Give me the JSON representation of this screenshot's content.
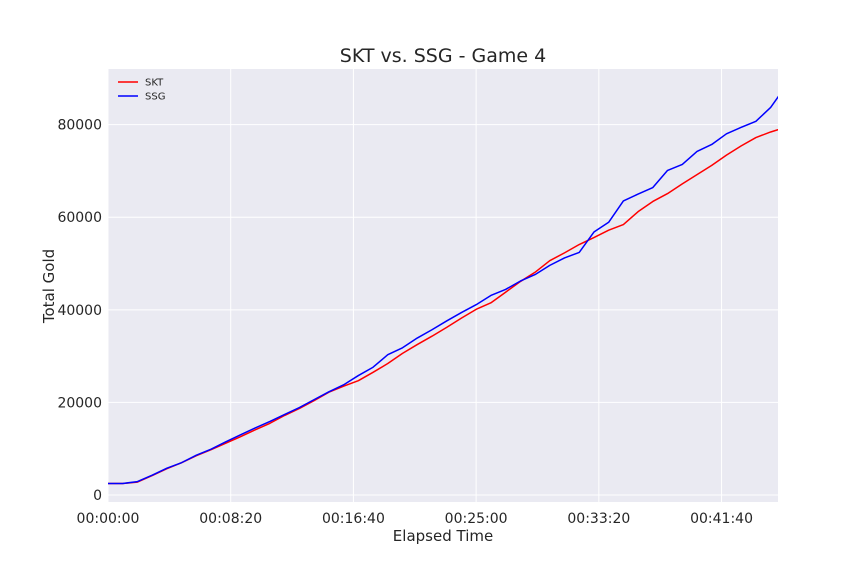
{
  "chart_data": {
    "type": "line",
    "title": "SKT vs. SSG - Game 4",
    "xlabel": "Elapsed Time",
    "ylabel": "Total Gold",
    "x_unit": "seconds",
    "xlim": [
      0,
      2730
    ],
    "ylim": [
      -1500,
      92000
    ],
    "x_ticks": [
      {
        "value": 0,
        "label": "00:00:00"
      },
      {
        "value": 500,
        "label": "00:08:20"
      },
      {
        "value": 1000,
        "label": "00:16:40"
      },
      {
        "value": 1500,
        "label": "00:25:00"
      },
      {
        "value": 2000,
        "label": "00:33:20"
      },
      {
        "value": 2500,
        "label": "00:41:40"
      }
    ],
    "y_ticks": [
      {
        "value": 0,
        "label": "0"
      },
      {
        "value": 20000,
        "label": "20000"
      },
      {
        "value": 40000,
        "label": "40000"
      },
      {
        "value": 60000,
        "label": "60000"
      },
      {
        "value": 80000,
        "label": "80000"
      }
    ],
    "grid": true,
    "legend_position": "top-left",
    "x": [
      0,
      60,
      120,
      180,
      240,
      300,
      360,
      420,
      480,
      540,
      600,
      660,
      720,
      780,
      840,
      900,
      960,
      1020,
      1080,
      1140,
      1200,
      1260,
      1320,
      1380,
      1440,
      1500,
      1560,
      1620,
      1680,
      1740,
      1800,
      1860,
      1920,
      1980,
      2040,
      2100,
      2160,
      2220,
      2280,
      2340,
      2400,
      2460,
      2520,
      2580,
      2640,
      2700,
      2760
    ],
    "series": [
      {
        "name": "SKT",
        "color": "#ff0000",
        "values": [
          2500,
          2500,
          2800,
          4200,
          5700,
          7000,
          8500,
          9800,
          11200,
          12600,
          14100,
          15500,
          17200,
          18700,
          20400,
          22200,
          23500,
          24700,
          26500,
          28400,
          30600,
          32500,
          34300,
          36200,
          38200,
          40100,
          41500,
          43800,
          46100,
          48100,
          50600,
          52300,
          54100,
          55600,
          57200,
          58400,
          61200,
          63400,
          65100,
          67200,
          69200,
          71200,
          73400,
          75400,
          77200,
          78400,
          79400
        ]
      },
      {
        "name": "SSG",
        "color": "#0000ff",
        "values": [
          2500,
          2500,
          2900,
          4300,
          5800,
          7000,
          8600,
          9900,
          11500,
          13000,
          14500,
          15900,
          17400,
          18900,
          20600,
          22300,
          23800,
          25800,
          27600,
          30300,
          31800,
          33900,
          35700,
          37600,
          39400,
          41100,
          43100,
          44400,
          46200,
          47600,
          49600,
          51200,
          52400,
          56800,
          58900,
          63500,
          65000,
          66400,
          70100,
          71400,
          74200,
          75700,
          78000,
          79400,
          80700,
          83700,
          88200
        ]
      }
    ]
  }
}
